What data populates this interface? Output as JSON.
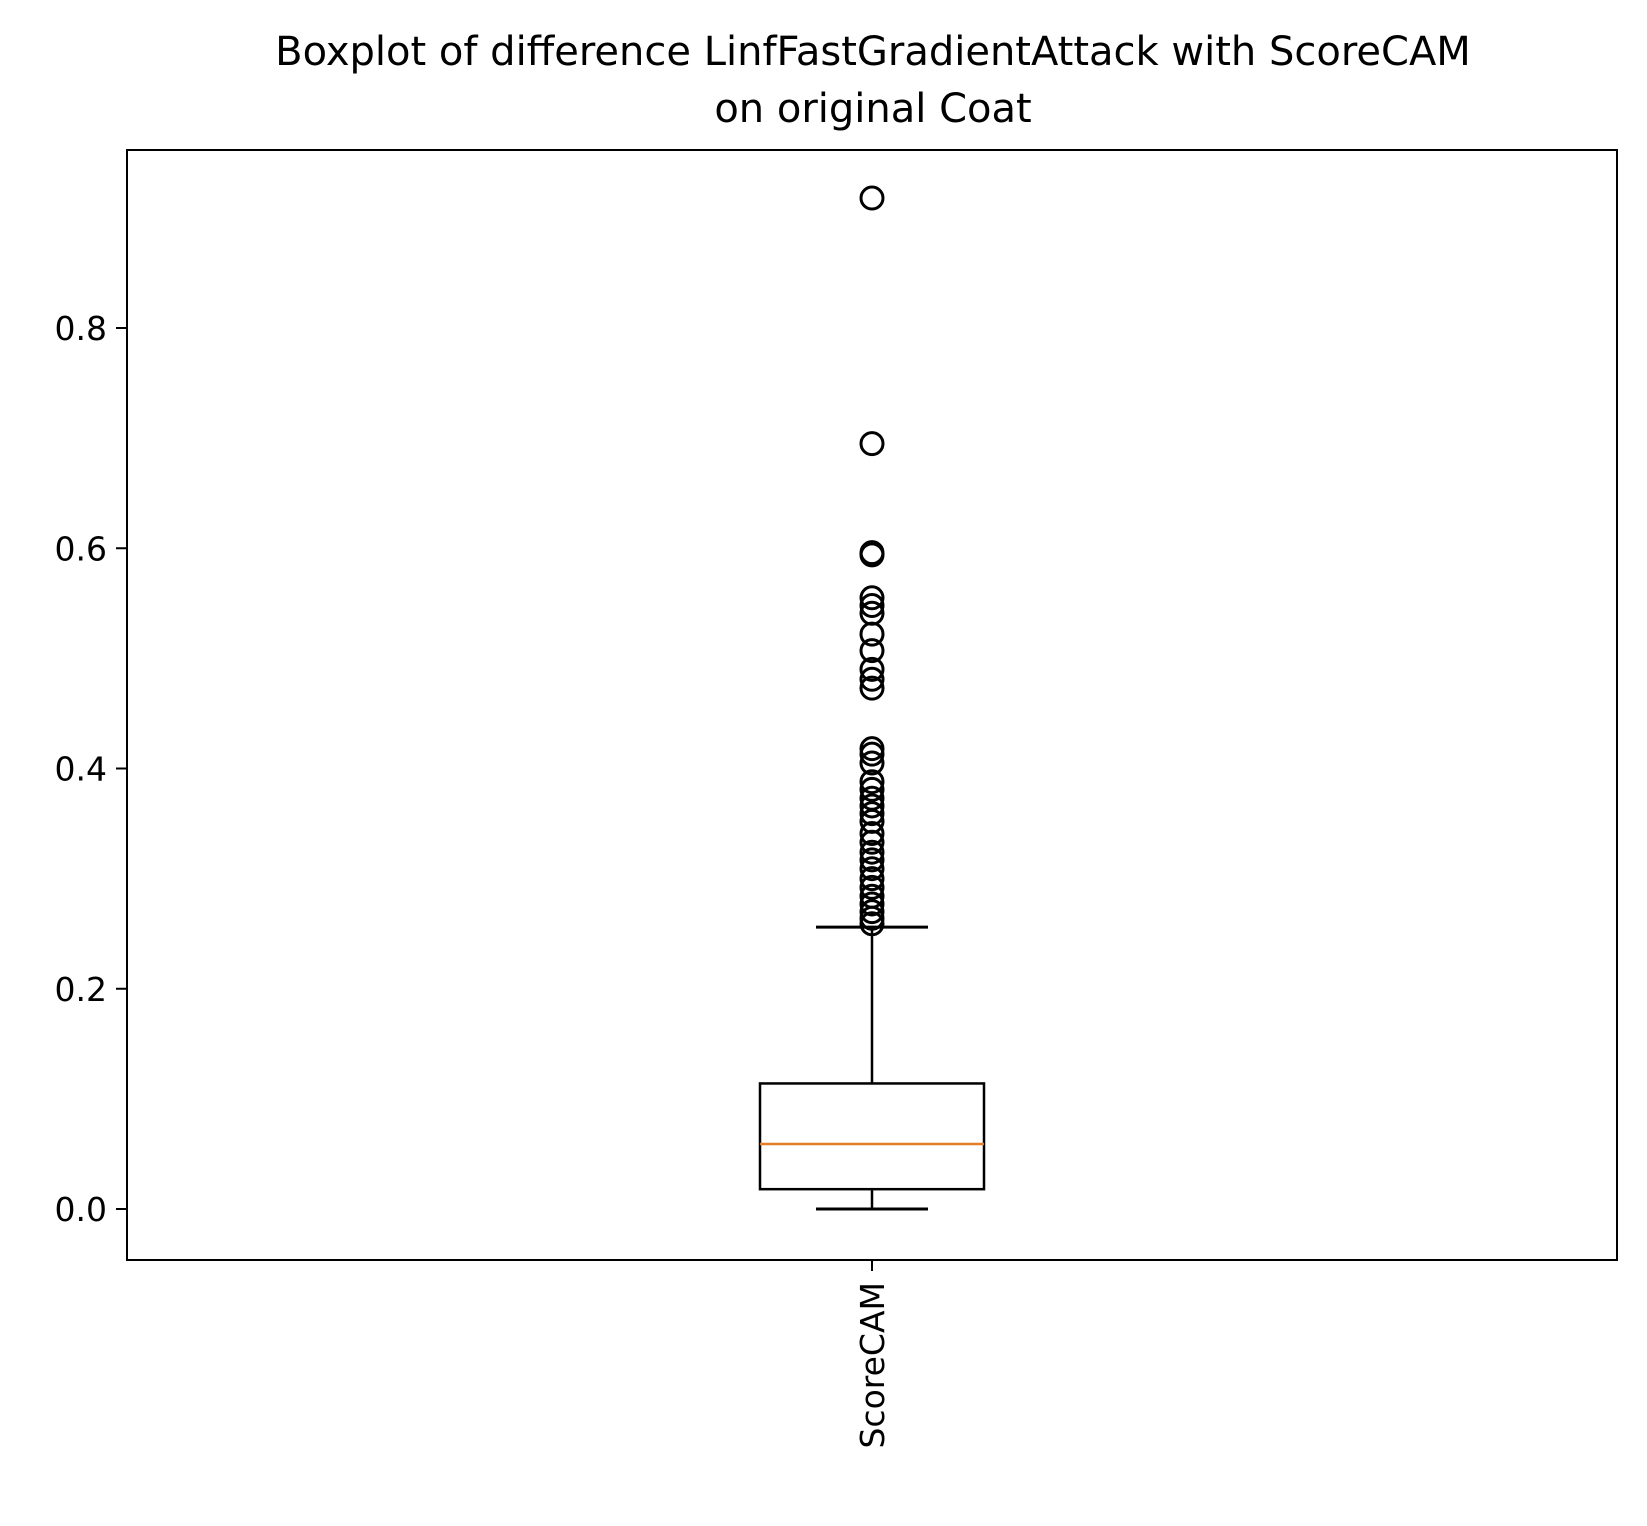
{
  "chart_data": {
    "type": "boxplot",
    "title_lines": [
      "Boxplot of difference LinfFastGradientAttack with ScoreCAM",
      "on original Coat"
    ],
    "xlabel": "",
    "ylabel": "",
    "ylim": [
      -0.045,
      0.962
    ],
    "y_ticks": [
      0.0,
      0.2,
      0.4,
      0.6,
      0.8
    ],
    "y_tick_labels": [
      "0.0",
      "0.2",
      "0.4",
      "0.6",
      "0.8"
    ],
    "grid": false,
    "legend": "none",
    "categories": [
      "ScoreCAM"
    ],
    "x_tick_rotation": "vertical",
    "boxes": [
      {
        "label": "ScoreCAM",
        "whisker_low": 0.0,
        "q1": 0.018,
        "median": 0.059,
        "q3": 0.114,
        "whisker_high": 0.256,
        "outliers": [
          0.918,
          0.695,
          0.596,
          0.594,
          0.555,
          0.548,
          0.541,
          0.522,
          0.507,
          0.49,
          0.481,
          0.473,
          0.418,
          0.413,
          0.405,
          0.388,
          0.381,
          0.373,
          0.366,
          0.359,
          0.352,
          0.341,
          0.333,
          0.324,
          0.317,
          0.309,
          0.3,
          0.292,
          0.284,
          0.277,
          0.27,
          0.264,
          0.259
        ]
      }
    ],
    "colors": {
      "box": "#000000",
      "median": "#e37e26",
      "outlier": "#000000",
      "background": "#ffffff"
    }
  }
}
